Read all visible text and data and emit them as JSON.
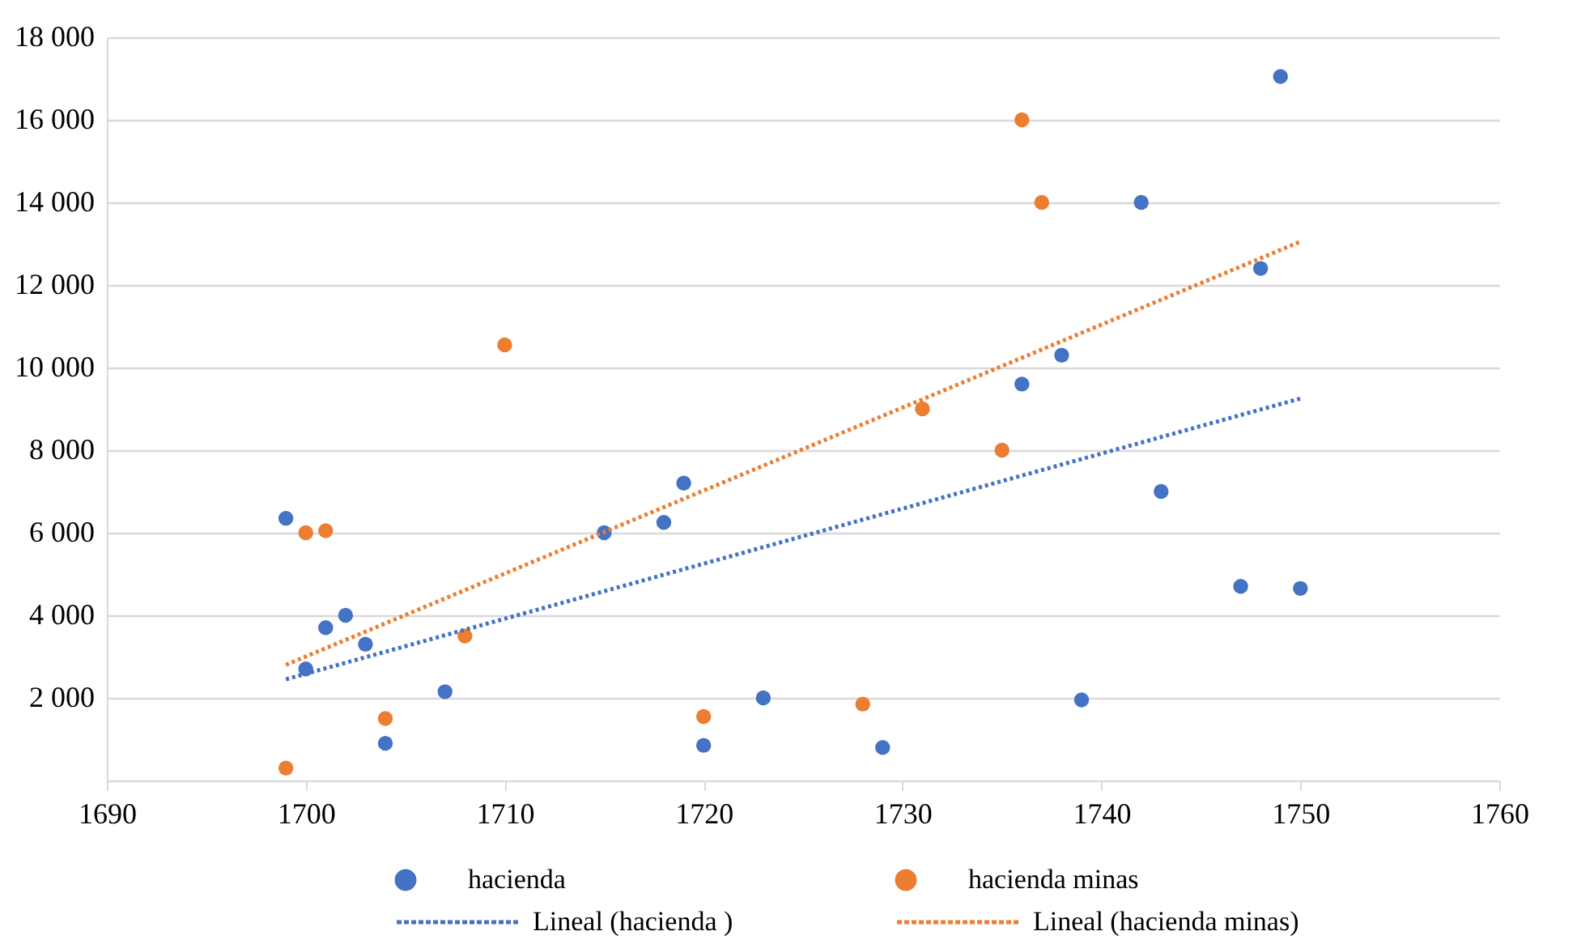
{
  "chart_data": {
    "type": "scatter",
    "series": [
      {
        "name": "hacienda",
        "color": "#4472c4",
        "x": [
          1699,
          1700,
          1701,
          1702,
          1703,
          1704,
          1707,
          1715,
          1718,
          1719,
          1720,
          1723,
          1729,
          1736,
          1738,
          1739,
          1742,
          1743,
          1747,
          1748,
          1749,
          1750
        ],
        "values": [
          6350,
          2700,
          3700,
          4000,
          3300,
          900,
          2150,
          6000,
          6250,
          7200,
          850,
          2000,
          800,
          9600,
          10300,
          1950,
          14000,
          7000,
          4700,
          12400,
          17050,
          4650
        ]
      },
      {
        "name": "hacienda minas",
        "color": "#ed7d31",
        "x": [
          1699,
          1700,
          1701,
          1704,
          1708,
          1710,
          1720,
          1728,
          1731,
          1735,
          1736,
          1737
        ],
        "values": [
          300,
          6000,
          6050,
          1500,
          3500,
          10550,
          1550,
          1850,
          9000,
          8000,
          16000,
          14000
        ]
      },
      {
        "name": "Lineal (hacienda )",
        "type": "line",
        "color": "#4472c4",
        "marker": "none",
        "line_style": "dotted",
        "x": [
          1699,
          1750
        ],
        "values": [
          2450,
          9250
        ]
      },
      {
        "name": "Lineal (hacienda minas)",
        "type": "line",
        "color": "#ed7d31",
        "marker": "none",
        "line_style": "dotted",
        "x": [
          1699,
          1750
        ],
        "values": [
          2800,
          13050
        ]
      }
    ],
    "marker": "circle",
    "xlim": [
      1690,
      1760
    ],
    "xticks": [
      1690,
      1700,
      1710,
      1720,
      1730,
      1740,
      1750,
      1760
    ],
    "ylim": [
      0,
      18000
    ],
    "yticks": [
      {
        "value": 0,
        "label": null
      },
      {
        "value": 2000,
        "label": "2 000"
      },
      {
        "value": 4000,
        "label": "4 000"
      },
      {
        "value": 6000,
        "label": "6 000"
      },
      {
        "value": 8000,
        "label": "8 000"
      },
      {
        "value": 10000,
        "label": "10 000"
      },
      {
        "value": 12000,
        "label": "12 000"
      },
      {
        "value": 14000,
        "label": "14 000"
      },
      {
        "value": 16000,
        "label": "16 000"
      },
      {
        "value": 18000,
        "label": "18 000"
      }
    ],
    "grid": "y",
    "legend": "bottom"
  }
}
